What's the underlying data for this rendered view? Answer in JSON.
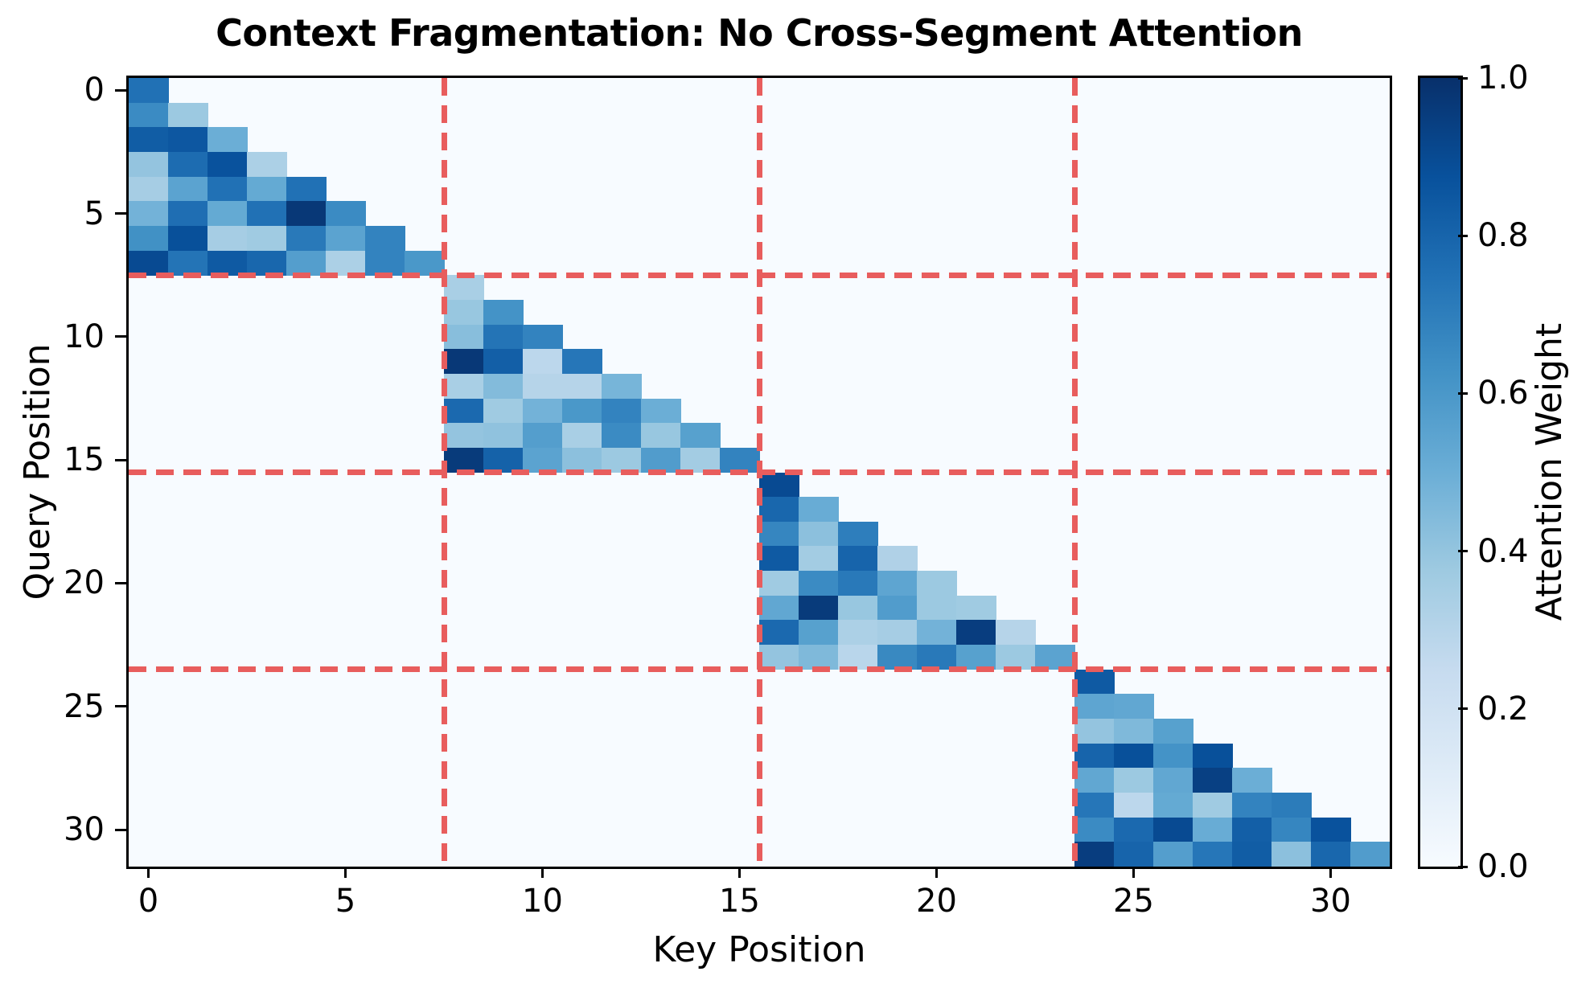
{
  "chart_data": {
    "type": "heatmap",
    "title": "Context Fragmentation: No Cross-Segment Attention",
    "xlabel": "Key Position",
    "ylabel": "Query Position",
    "colorbar_label": "Attention Weight",
    "n": 32,
    "segment_size": 8,
    "num_segments": 4,
    "x_ticks": [
      0,
      5,
      10,
      15,
      20,
      25,
      30
    ],
    "y_ticks": [
      0,
      5,
      10,
      15,
      20,
      25,
      30
    ],
    "colorbar_ticks": [
      {
        "label": "1.0",
        "value": 1.0
      },
      {
        "label": "0.8",
        "value": 0.8
      },
      {
        "label": "0.6",
        "value": 0.6
      },
      {
        "label": "0.4",
        "value": 0.4
      },
      {
        "label": "0.2",
        "value": 0.2
      },
      {
        "label": "0.0",
        "value": 0.0
      }
    ],
    "vmin": 0.0,
    "vmax": 1.0,
    "colormap": {
      "name": "Blues",
      "anchors": [
        "#f7fbff",
        "#deebf7",
        "#c6dbef",
        "#9ecae1",
        "#6baed6",
        "#4292c6",
        "#2171b5",
        "#08519c",
        "#08306b"
      ]
    },
    "masked_color": "#f7fbff",
    "boundary_line_color": "#e85d5d",
    "segment_boundaries": [
      7.5,
      15.5,
      23.5
    ],
    "grid": false,
    "rows": [
      {
        "row": 0,
        "start_col": 0,
        "values": [
          0.75
        ]
      },
      {
        "row": 1,
        "start_col": 0,
        "values": [
          0.65,
          0.38
        ]
      },
      {
        "row": 2,
        "start_col": 0,
        "values": [
          0.83,
          0.85,
          0.5
        ]
      },
      {
        "row": 3,
        "start_col": 0,
        "values": [
          0.4,
          0.77,
          0.87,
          0.33
        ]
      },
      {
        "row": 4,
        "start_col": 0,
        "values": [
          0.35,
          0.55,
          0.75,
          0.52,
          0.75
        ]
      },
      {
        "row": 5,
        "start_col": 0,
        "values": [
          0.48,
          0.76,
          0.52,
          0.75,
          0.97,
          0.65
        ]
      },
      {
        "row": 6,
        "start_col": 0,
        "values": [
          0.63,
          0.88,
          0.35,
          0.37,
          0.72,
          0.55,
          0.68
        ]
      },
      {
        "row": 7,
        "start_col": 0,
        "values": [
          0.9,
          0.74,
          0.84,
          0.79,
          0.57,
          0.33,
          0.68,
          0.6
        ]
      },
      {
        "row": 8,
        "start_col": 8,
        "values": [
          0.34
        ]
      },
      {
        "row": 9,
        "start_col": 8,
        "values": [
          0.39,
          0.62
        ]
      },
      {
        "row": 10,
        "start_col": 8,
        "values": [
          0.43,
          0.74,
          0.68
        ]
      },
      {
        "row": 11,
        "start_col": 8,
        "values": [
          0.97,
          0.82,
          0.28,
          0.73
        ]
      },
      {
        "row": 12,
        "start_col": 8,
        "values": [
          0.34,
          0.44,
          0.3,
          0.3,
          0.47
        ]
      },
      {
        "row": 13,
        "start_col": 8,
        "values": [
          0.78,
          0.37,
          0.48,
          0.6,
          0.68,
          0.5
        ]
      },
      {
        "row": 14,
        "start_col": 8,
        "values": [
          0.4,
          0.41,
          0.57,
          0.34,
          0.65,
          0.39,
          0.56
        ]
      },
      {
        "row": 15,
        "start_col": 8,
        "values": [
          0.96,
          0.81,
          0.55,
          0.42,
          0.38,
          0.58,
          0.36,
          0.68
        ]
      },
      {
        "row": 16,
        "start_col": 16,
        "values": [
          0.9
        ]
      },
      {
        "row": 17,
        "start_col": 16,
        "values": [
          0.79,
          0.51
        ]
      },
      {
        "row": 18,
        "start_col": 16,
        "values": [
          0.67,
          0.42,
          0.7
        ]
      },
      {
        "row": 19,
        "start_col": 16,
        "values": [
          0.84,
          0.36,
          0.8,
          0.32
        ]
      },
      {
        "row": 20,
        "start_col": 16,
        "values": [
          0.37,
          0.65,
          0.72,
          0.54,
          0.38
        ]
      },
      {
        "row": 21,
        "start_col": 16,
        "values": [
          0.53,
          0.96,
          0.39,
          0.58,
          0.38,
          0.37
        ]
      },
      {
        "row": 22,
        "start_col": 16,
        "values": [
          0.78,
          0.56,
          0.33,
          0.35,
          0.48,
          0.95,
          0.3
        ]
      },
      {
        "row": 23,
        "start_col": 16,
        "values": [
          0.4,
          0.45,
          0.29,
          0.66,
          0.72,
          0.56,
          0.38,
          0.55
        ]
      },
      {
        "row": 24,
        "start_col": 24,
        "values": [
          0.84
        ]
      },
      {
        "row": 25,
        "start_col": 24,
        "values": [
          0.54,
          0.53
        ]
      },
      {
        "row": 26,
        "start_col": 24,
        "values": [
          0.4,
          0.45,
          0.56
        ]
      },
      {
        "row": 27,
        "start_col": 24,
        "values": [
          0.8,
          0.88,
          0.62,
          0.88
        ]
      },
      {
        "row": 28,
        "start_col": 24,
        "values": [
          0.53,
          0.38,
          0.53,
          0.94,
          0.5
        ]
      },
      {
        "row": 29,
        "start_col": 24,
        "values": [
          0.73,
          0.28,
          0.52,
          0.37,
          0.68,
          0.71
        ]
      },
      {
        "row": 30,
        "start_col": 24,
        "values": [
          0.65,
          0.78,
          0.9,
          0.51,
          0.82,
          0.67,
          0.87
        ]
      },
      {
        "row": 31,
        "start_col": 24,
        "values": [
          0.95,
          0.8,
          0.57,
          0.73,
          0.83,
          0.42,
          0.79,
          0.58
        ]
      }
    ]
  }
}
